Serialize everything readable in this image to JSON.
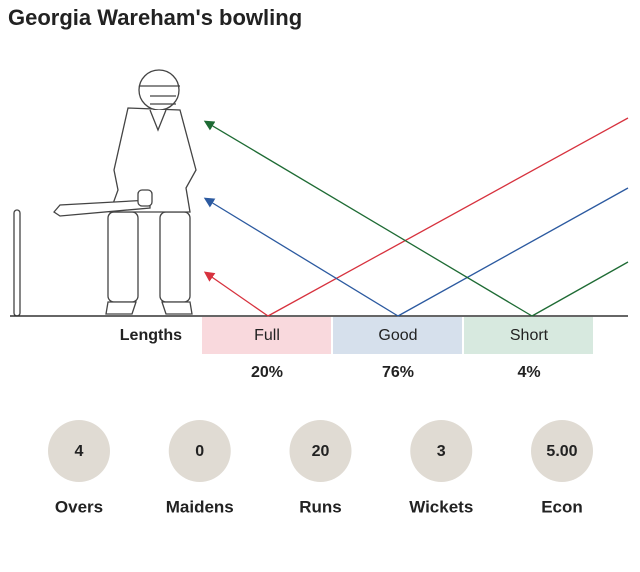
{
  "title": "Georgia Wareham's bowling",
  "lengths": {
    "label": "Lengths",
    "items": [
      {
        "name": "Full",
        "share": "20%"
      },
      {
        "name": "Good",
        "share": "76%"
      },
      {
        "name": "Short",
        "share": "4%"
      }
    ]
  },
  "stats": [
    {
      "value": "4",
      "label": "Overs"
    },
    {
      "value": "0",
      "label": "Maidens"
    },
    {
      "value": "20",
      "label": "Runs"
    },
    {
      "value": "3",
      "label": "Wickets"
    },
    {
      "value": "5.00",
      "label": "Econ"
    }
  ]
}
